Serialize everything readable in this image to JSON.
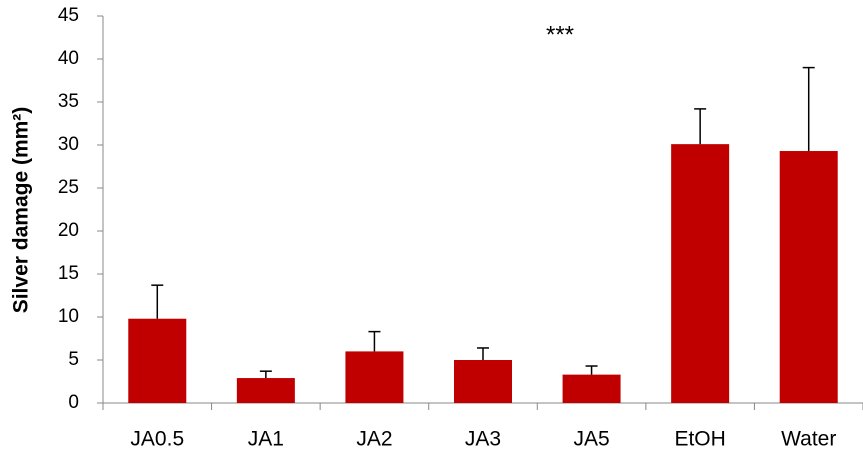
{
  "chart_data": {
    "type": "bar",
    "y_label": "Silver damage (mm²)",
    "annotation": "***",
    "categories": [
      "JA0.5",
      "JA1",
      "JA2",
      "JA3",
      "JA5",
      "EtOH",
      "Water"
    ],
    "values": [
      9.8,
      2.9,
      6.0,
      5.0,
      3.3,
      30.1,
      29.3
    ],
    "errors": [
      3.9,
      0.8,
      2.3,
      1.4,
      1.0,
      4.1,
      9.7
    ],
    "color": "#c00000",
    "ylim": [
      0,
      45
    ],
    "yticks": [
      0,
      5,
      10,
      15,
      20,
      25,
      30,
      35,
      40,
      45
    ],
    "grid": false
  }
}
